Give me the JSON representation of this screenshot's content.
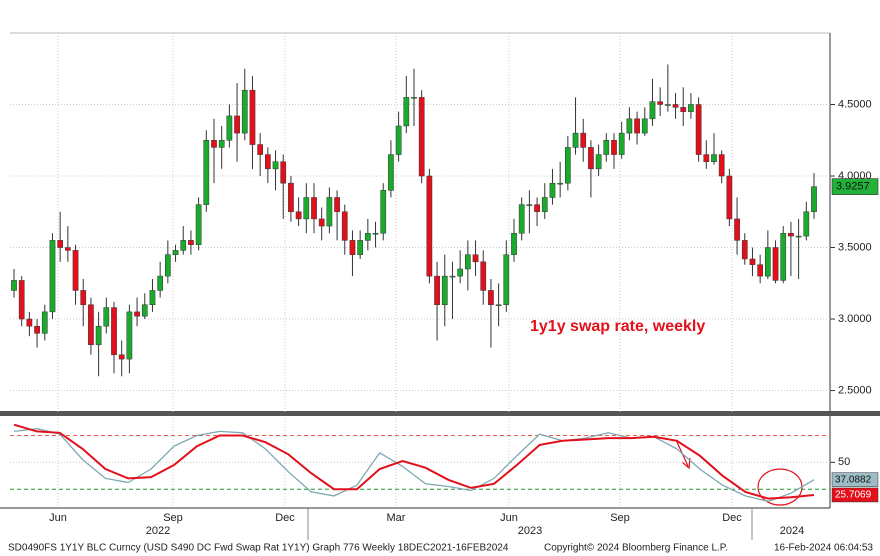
{
  "chart_data": [
    {
      "type": "candlestick",
      "annotation": "1y1y swap rate, weekly",
      "up_color": "#1aaa2e",
      "down_color": "#e3101b",
      "ylim": [
        2.35,
        5.0
      ],
      "yticks": [
        {
          "value": 2.5,
          "label": "2.5000"
        },
        {
          "value": 3.0,
          "label": "3.0000"
        },
        {
          "value": 3.5,
          "label": "3.5000"
        },
        {
          "value": 4.0,
          "label": "4.0000"
        },
        {
          "value": 4.5,
          "label": "4.5000"
        }
      ],
      "grid": true,
      "open": [
        3.2,
        3.27,
        3.0,
        2.95,
        2.9,
        3.05,
        3.55,
        3.5,
        3.48,
        3.2,
        3.1,
        2.82,
        2.95,
        3.08,
        2.75,
        2.72,
        3.05,
        3.02,
        3.1,
        3.2,
        3.3,
        3.45,
        3.48,
        3.55,
        3.52,
        3.8,
        4.25,
        4.2,
        4.25,
        4.42,
        4.3,
        4.6,
        4.22,
        4.15,
        4.05,
        4.1,
        3.95,
        3.75,
        3.7,
        3.85,
        3.7,
        3.65,
        3.85,
        3.75,
        3.55,
        3.45,
        3.55,
        3.6,
        3.6,
        3.9,
        4.15,
        4.35,
        4.55,
        4.55,
        4.0,
        3.3,
        3.1,
        3.3,
        3.3,
        3.35,
        3.45,
        3.4,
        3.2,
        3.1,
        3.1,
        3.45,
        3.6,
        3.8,
        3.8,
        3.75,
        3.85,
        3.95,
        3.95,
        4.2,
        4.3,
        4.2,
        4.05,
        4.15,
        4.25,
        4.15,
        4.3,
        4.4,
        4.3,
        4.4,
        4.52,
        4.5,
        4.5,
        4.48,
        4.45,
        4.5,
        4.15,
        4.1,
        4.15,
        4.0,
        3.7,
        3.55,
        3.42,
        3.38,
        3.3,
        3.5,
        3.27,
        3.6,
        3.58,
        3.58,
        3.75
      ],
      "high": [
        3.35,
        3.3,
        3.05,
        3.0,
        3.1,
        3.6,
        3.75,
        3.65,
        3.52,
        3.28,
        3.15,
        3.05,
        3.15,
        3.12,
        2.85,
        3.1,
        3.15,
        3.18,
        3.28,
        3.4,
        3.55,
        3.52,
        3.65,
        3.62,
        3.85,
        4.32,
        4.4,
        4.35,
        4.5,
        4.65,
        4.75,
        4.7,
        4.3,
        4.2,
        4.18,
        4.15,
        4.0,
        3.85,
        3.95,
        3.95,
        3.78,
        3.92,
        3.9,
        3.8,
        3.62,
        3.62,
        3.7,
        3.68,
        3.95,
        4.25,
        4.45,
        4.7,
        4.75,
        4.6,
        4.05,
        3.4,
        3.45,
        3.4,
        3.48,
        3.55,
        3.55,
        3.48,
        3.28,
        3.25,
        3.55,
        3.7,
        3.85,
        3.9,
        3.85,
        3.95,
        4.05,
        4.1,
        4.28,
        4.55,
        4.4,
        4.25,
        4.22,
        4.3,
        4.3,
        4.38,
        4.48,
        4.45,
        4.48,
        4.68,
        4.62,
        4.78,
        4.58,
        4.62,
        4.58,
        4.55,
        4.25,
        4.3,
        4.18,
        4.05,
        3.85,
        3.6,
        3.5,
        3.45,
        3.62,
        3.55,
        3.65,
        3.68,
        3.7,
        3.82,
        4.02
      ],
      "low": [
        3.15,
        2.95,
        2.88,
        2.8,
        2.85,
        3.0,
        3.4,
        3.4,
        3.1,
        2.95,
        2.75,
        2.6,
        2.9,
        2.62,
        2.6,
        2.62,
        2.95,
        3.0,
        3.05,
        3.15,
        3.25,
        3.4,
        3.45,
        3.45,
        3.48,
        3.75,
        3.95,
        4.05,
        4.2,
        4.1,
        4.25,
        4.05,
        4.0,
        3.95,
        3.9,
        3.7,
        3.68,
        3.65,
        3.6,
        3.6,
        3.55,
        3.6,
        3.55,
        3.45,
        3.3,
        3.42,
        3.48,
        3.5,
        3.55,
        3.85,
        4.1,
        4.3,
        4.35,
        3.95,
        3.25,
        2.85,
        2.95,
        3.0,
        3.25,
        3.2,
        3.3,
        3.1,
        2.8,
        2.95,
        3.05,
        3.4,
        3.55,
        3.6,
        3.65,
        3.7,
        3.8,
        3.85,
        3.9,
        4.15,
        4.1,
        3.85,
        4.0,
        4.1,
        4.05,
        4.12,
        4.25,
        4.22,
        4.28,
        4.35,
        4.42,
        4.45,
        4.4,
        4.35,
        4.4,
        4.1,
        4.05,
        4.08,
        3.95,
        3.65,
        3.45,
        3.38,
        3.3,
        3.25,
        3.28,
        3.25,
        3.25,
        3.3,
        3.28,
        3.55,
        3.7
      ],
      "close": [
        3.27,
        3.0,
        2.95,
        2.9,
        3.05,
        3.55,
        3.5,
        3.48,
        3.2,
        3.1,
        2.82,
        2.95,
        3.08,
        2.75,
        2.72,
        3.05,
        3.02,
        3.1,
        3.2,
        3.3,
        3.45,
        3.48,
        3.55,
        3.52,
        3.8,
        4.25,
        4.2,
        4.25,
        4.42,
        4.3,
        4.6,
        4.22,
        4.15,
        4.05,
        4.1,
        3.95,
        3.75,
        3.7,
        3.85,
        3.7,
        3.65,
        3.85,
        3.75,
        3.55,
        3.45,
        3.55,
        3.6,
        3.6,
        3.9,
        4.15,
        4.35,
        4.55,
        4.55,
        4.0,
        3.3,
        3.1,
        3.3,
        3.3,
        3.35,
        3.45,
        3.4,
        3.2,
        3.1,
        3.1,
        3.45,
        3.6,
        3.8,
        3.8,
        3.75,
        3.85,
        3.95,
        3.95,
        4.2,
        4.3,
        4.2,
        4.05,
        4.15,
        4.25,
        4.15,
        4.3,
        4.4,
        4.3,
        4.4,
        4.52,
        4.5,
        4.5,
        4.48,
        4.45,
        4.5,
        4.15,
        4.1,
        4.15,
        4.0,
        3.7,
        3.55,
        3.42,
        3.38,
        3.3,
        3.5,
        3.27,
        3.6,
        3.58,
        3.58,
        3.75,
        3.9257
      ]
    },
    {
      "type": "line",
      "ylim": [
        16,
        83
      ],
      "yticks": [
        50
      ],
      "ref_lines": [
        {
          "value": 70,
          "color": "#e8604c"
        },
        {
          "value": 30,
          "color": "#1a9a2a"
        }
      ],
      "series": [
        {
          "color": "#e3101b",
          "values": [
            78,
            73,
            72,
            60,
            45,
            38,
            39,
            48,
            62,
            70,
            70,
            65,
            56,
            42,
            30,
            30,
            45,
            51,
            46,
            37,
            31,
            34,
            48,
            63,
            66,
            67,
            68,
            68,
            69,
            66,
            55,
            40,
            28,
            23,
            24,
            25.7069
          ]
        },
        {
          "color": "#7fa8b4",
          "values": [
            73,
            75,
            71,
            52,
            38,
            35,
            45,
            62,
            70,
            73,
            72,
            60,
            43,
            28,
            25,
            33,
            57,
            47,
            34,
            32,
            29,
            38,
            55,
            71,
            66,
            68,
            72,
            68,
            69,
            60,
            45,
            33,
            25,
            21,
            27,
            37.0882
          ]
        }
      ],
      "month_labels": [
        "Jun",
        "Sep",
        "Dec",
        "Mar",
        "Jun",
        "Sep",
        "Dec"
      ],
      "year_labels": [
        "2022",
        "2023",
        "2024"
      ]
    }
  ],
  "footer": {
    "description": "SD0490FS 1Y1Y BLC Curncy (USD S490 DC Fwd Swap Rat 1Y1Y) Graph 776  Weekly 18DEC2021-16FEB2024",
    "copyright": "Copyright© 2024 Bloomberg Finance L.P.",
    "timestamp": "16-Feb-2024 06:04:53"
  }
}
